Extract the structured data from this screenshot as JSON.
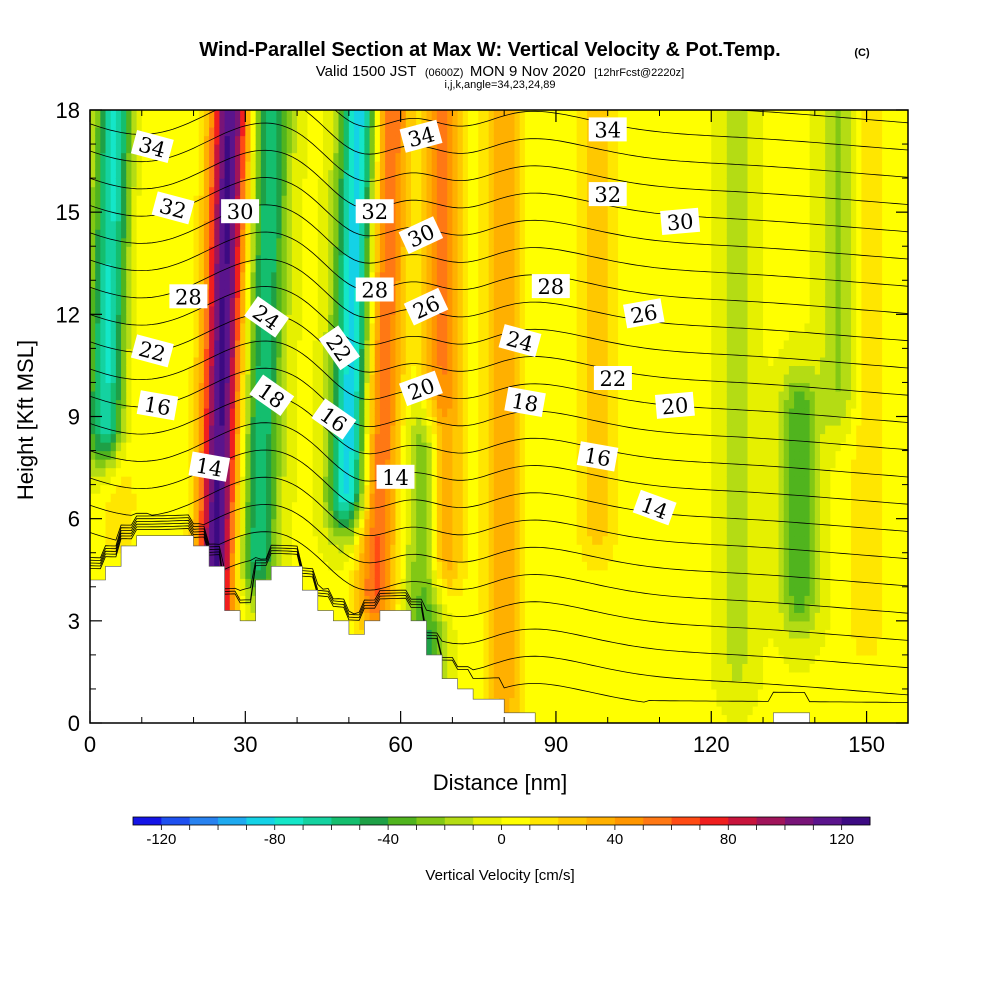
{
  "title": {
    "main": "Wind-Parallel Section at Max W: Vertical Velocity & Pot.Temp.",
    "copyright": "(C)",
    "valid_prefix": "Valid 1500 JST",
    "valid_utc": "(0600Z)",
    "valid_date": "MON 9 Nov 2020",
    "forecast": "[12hrFcst@2220z]",
    "indices": "i,j,k,angle=34,23,24,89"
  },
  "chart_data": {
    "type": "heatmap",
    "xlabel": "Distance [nm]",
    "ylabel": "Height [Kft MSL]",
    "xlim": [
      0,
      158
    ],
    "ylim": [
      0,
      18
    ],
    "x_ticks": [
      0,
      30,
      60,
      90,
      120,
      150
    ],
    "y_ticks": [
      0,
      3,
      6,
      9,
      12,
      15,
      18
    ],
    "colorbar": {
      "label": "Vertical Velocity [cm/s]",
      "range": [
        -130,
        130
      ],
      "step": 10,
      "tick_values": [
        -120,
        -80,
        -40,
        0,
        40,
        80,
        120
      ],
      "colors": [
        "#1414e6",
        "#1e50f0",
        "#2882f0",
        "#1eaaf0",
        "#14d2e6",
        "#14e6c8",
        "#14d2a0",
        "#14be6e",
        "#1ea046",
        "#50b41e",
        "#82c814",
        "#b4dc14",
        "#e6f000",
        "#ffff00",
        "#ffe600",
        "#ffc800",
        "#ffb000",
        "#ff9600",
        "#ff7814",
        "#ff4b14",
        "#f01e1e",
        "#c8143c",
        "#a0145a",
        "#781478",
        "#5a148c",
        "#3c0a82"
      ]
    },
    "updraft_cores": [
      {
        "x": 25,
        "y_bottom": 3.5,
        "y_top": 18,
        "w_peak": 120
      },
      {
        "x": 56,
        "y_bottom": 4,
        "y_top": 18,
        "w_peak": 60
      },
      {
        "x": 68,
        "y_bottom": 5,
        "y_top": 18,
        "w_peak": 50
      },
      {
        "x": 80,
        "y_bottom": 1,
        "y_top": 18,
        "w_peak": 35
      },
      {
        "x": 98,
        "y_bottom": 6,
        "y_top": 18,
        "w_peak": 25
      },
      {
        "x": 6,
        "y_bottom": 6,
        "y_top": 18,
        "w_peak": 15
      },
      {
        "x": 150,
        "y_bottom": 3,
        "y_top": 18,
        "w_peak": 15
      }
    ],
    "downdraft_cores": [
      {
        "x": 50,
        "y_bottom": 7,
        "y_top": 18,
        "w_peak": -90
      },
      {
        "x": 33,
        "y_bottom": 5,
        "y_top": 18,
        "w_peak": -60
      },
      {
        "x": 3,
        "y_bottom": 9,
        "y_top": 18,
        "w_peak": -80
      },
      {
        "x": 65,
        "y_bottom": 2,
        "y_top": 8,
        "w_peak": -45
      },
      {
        "x": 137,
        "y_bottom": 4,
        "y_top": 9,
        "w_peak": -40
      },
      {
        "x": 125,
        "y_bottom": 2,
        "y_top": 18,
        "w_peak": -15
      },
      {
        "x": 145,
        "y_bottom": 10,
        "y_top": 18,
        "w_peak": -25
      }
    ],
    "terrain": [
      [
        0,
        4.2
      ],
      [
        3,
        4.2
      ],
      [
        3,
        4.6
      ],
      [
        6,
        4.6
      ],
      [
        6,
        5.2
      ],
      [
        9,
        5.2
      ],
      [
        9,
        5.5
      ],
      [
        20,
        5.5
      ],
      [
        20,
        5.2
      ],
      [
        23,
        5.2
      ],
      [
        23,
        4.6
      ],
      [
        26,
        4.6
      ],
      [
        26,
        3.3
      ],
      [
        29,
        3.3
      ],
      [
        29,
        3.0
      ],
      [
        32,
        3.0
      ],
      [
        32,
        4.2
      ],
      [
        35,
        4.2
      ],
      [
        35,
        4.6
      ],
      [
        41,
        4.6
      ],
      [
        41,
        3.9
      ],
      [
        44,
        3.9
      ],
      [
        44,
        3.3
      ],
      [
        47,
        3.3
      ],
      [
        47,
        3.0
      ],
      [
        50,
        3.0
      ],
      [
        50,
        2.6
      ],
      [
        53,
        2.6
      ],
      [
        53,
        3.0
      ],
      [
        56,
        3.0
      ],
      [
        56,
        3.3
      ],
      [
        62,
        3.3
      ],
      [
        62,
        3.0
      ],
      [
        65,
        3.0
      ],
      [
        65,
        2.0
      ],
      [
        68,
        2.0
      ],
      [
        68,
        1.3
      ],
      [
        71,
        1.3
      ],
      [
        71,
        1.0
      ],
      [
        74,
        1.0
      ],
      [
        74,
        0.7
      ],
      [
        80,
        0.7
      ],
      [
        80,
        0.3
      ],
      [
        86,
        0.3
      ],
      [
        86,
        0
      ],
      [
        132,
        0
      ],
      [
        132,
        0.3
      ],
      [
        139,
        0.3
      ],
      [
        139,
        0
      ],
      [
        158,
        0
      ]
    ],
    "isentrope_levels": [
      14,
      16,
      18,
      20,
      22,
      24,
      26,
      28,
      30,
      32,
      34
    ],
    "contour_labels": [
      {
        "text": "34",
        "x": 12,
        "y": 16.9,
        "rot": 15
      },
      {
        "text": "32",
        "x": 16,
        "y": 15.1,
        "rot": 15
      },
      {
        "text": "30",
        "x": 29,
        "y": 15.0,
        "rot": 0
      },
      {
        "text": "32",
        "x": 55,
        "y": 15.0,
        "rot": 0
      },
      {
        "text": "34",
        "x": 64,
        "y": 17.2,
        "rot": -15
      },
      {
        "text": "34",
        "x": 100,
        "y": 17.4,
        "rot": 0
      },
      {
        "text": "32",
        "x": 100,
        "y": 15.5,
        "rot": 0
      },
      {
        "text": "30",
        "x": 64,
        "y": 14.3,
        "rot": -25
      },
      {
        "text": "30",
        "x": 114,
        "y": 14.7,
        "rot": -5
      },
      {
        "text": "28",
        "x": 19,
        "y": 12.5,
        "rot": 0
      },
      {
        "text": "28",
        "x": 55,
        "y": 12.7,
        "rot": 0
      },
      {
        "text": "28",
        "x": 89,
        "y": 12.8,
        "rot": 0
      },
      {
        "text": "26",
        "x": 65,
        "y": 12.2,
        "rot": -25
      },
      {
        "text": "26",
        "x": 107,
        "y": 12.0,
        "rot": -10
      },
      {
        "text": "24",
        "x": 34,
        "y": 11.9,
        "rot": 35
      },
      {
        "text": "24",
        "x": 83,
        "y": 11.2,
        "rot": 15
      },
      {
        "text": "22",
        "x": 12,
        "y": 10.9,
        "rot": 15
      },
      {
        "text": "22",
        "x": 48,
        "y": 11.0,
        "rot": 55
      },
      {
        "text": "22",
        "x": 101,
        "y": 10.1,
        "rot": 0
      },
      {
        "text": "20",
        "x": 64,
        "y": 9.8,
        "rot": -20
      },
      {
        "text": "20",
        "x": 113,
        "y": 9.3,
        "rot": -5
      },
      {
        "text": "18",
        "x": 35,
        "y": 9.6,
        "rot": 35
      },
      {
        "text": "18",
        "x": 84,
        "y": 9.4,
        "rot": 10
      },
      {
        "text": "16",
        "x": 13,
        "y": 9.3,
        "rot": 10
      },
      {
        "text": "16",
        "x": 47,
        "y": 8.9,
        "rot": 35
      },
      {
        "text": "16",
        "x": 98,
        "y": 7.8,
        "rot": 10
      },
      {
        "text": "14",
        "x": 23,
        "y": 7.5,
        "rot": 10
      },
      {
        "text": "14",
        "x": 59,
        "y": 7.2,
        "rot": 0
      },
      {
        "text": "14",
        "x": 109,
        "y": 6.3,
        "rot": 20
      }
    ]
  }
}
